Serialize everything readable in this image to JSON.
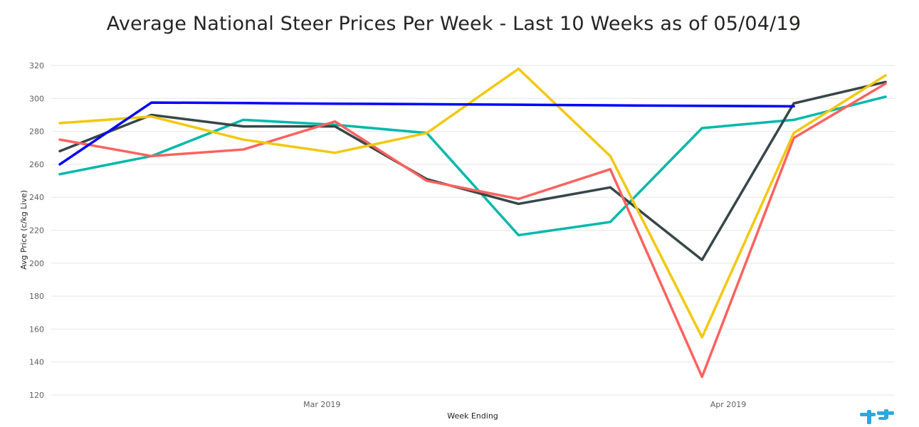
{
  "title": "Average National Steer Prices Per Week - Last 10 Weeks as of 05/04/19",
  "chart_data": {
    "type": "line",
    "title": "Average National Steer Prices Per Week - Last 10 Weeks as of 05/04/19",
    "xlabel": "Week Ending",
    "ylabel": "Avg Price (c/kg Live)",
    "ylim": [
      120,
      320
    ],
    "yticks": [
      320,
      300,
      280,
      260,
      240,
      220,
      200,
      180,
      160,
      140,
      120
    ],
    "x": [
      "2019-02-09",
      "2019-02-16",
      "2019-02-23",
      "2019-03-02",
      "2019-03-09",
      "2019-03-16",
      "2019-03-23",
      "2019-03-30",
      "2019-04-06",
      "2019-04-13"
    ],
    "xlim": [
      "2019-02-09",
      "2019-04-13"
    ],
    "xticks": [
      {
        "date": "2019-03-01",
        "label": "Mar 2019"
      },
      {
        "date": "2019-04-01",
        "label": "Apr 2019"
      }
    ],
    "grid": true,
    "legend": "none",
    "series": [
      {
        "color": "#01B8AA",
        "values": [
          254,
          265,
          287,
          284,
          279,
          217,
          225,
          282,
          287,
          301
        ]
      },
      {
        "color": "#374649",
        "values": [
          268,
          290,
          283,
          283,
          251,
          236,
          246,
          202,
          297,
          310
        ]
      },
      {
        "color": "#FD625E",
        "values": [
          275,
          265,
          269,
          286,
          250,
          239,
          257,
          131,
          276,
          309
        ]
      },
      {
        "color": "#F2C80F",
        "values": [
          285,
          289,
          275,
          267,
          279,
          318,
          265,
          155,
          279,
          314
        ]
      },
      {
        "color": "#0000FF",
        "values": [
          260,
          297.5,
          297.2,
          296.8,
          296.5,
          296.2,
          295.8,
          295.5,
          295.2,
          null
        ]
      }
    ]
  },
  "logo": {
    "icon": "cattle-logo-icon",
    "color": "#2CA8E0"
  }
}
